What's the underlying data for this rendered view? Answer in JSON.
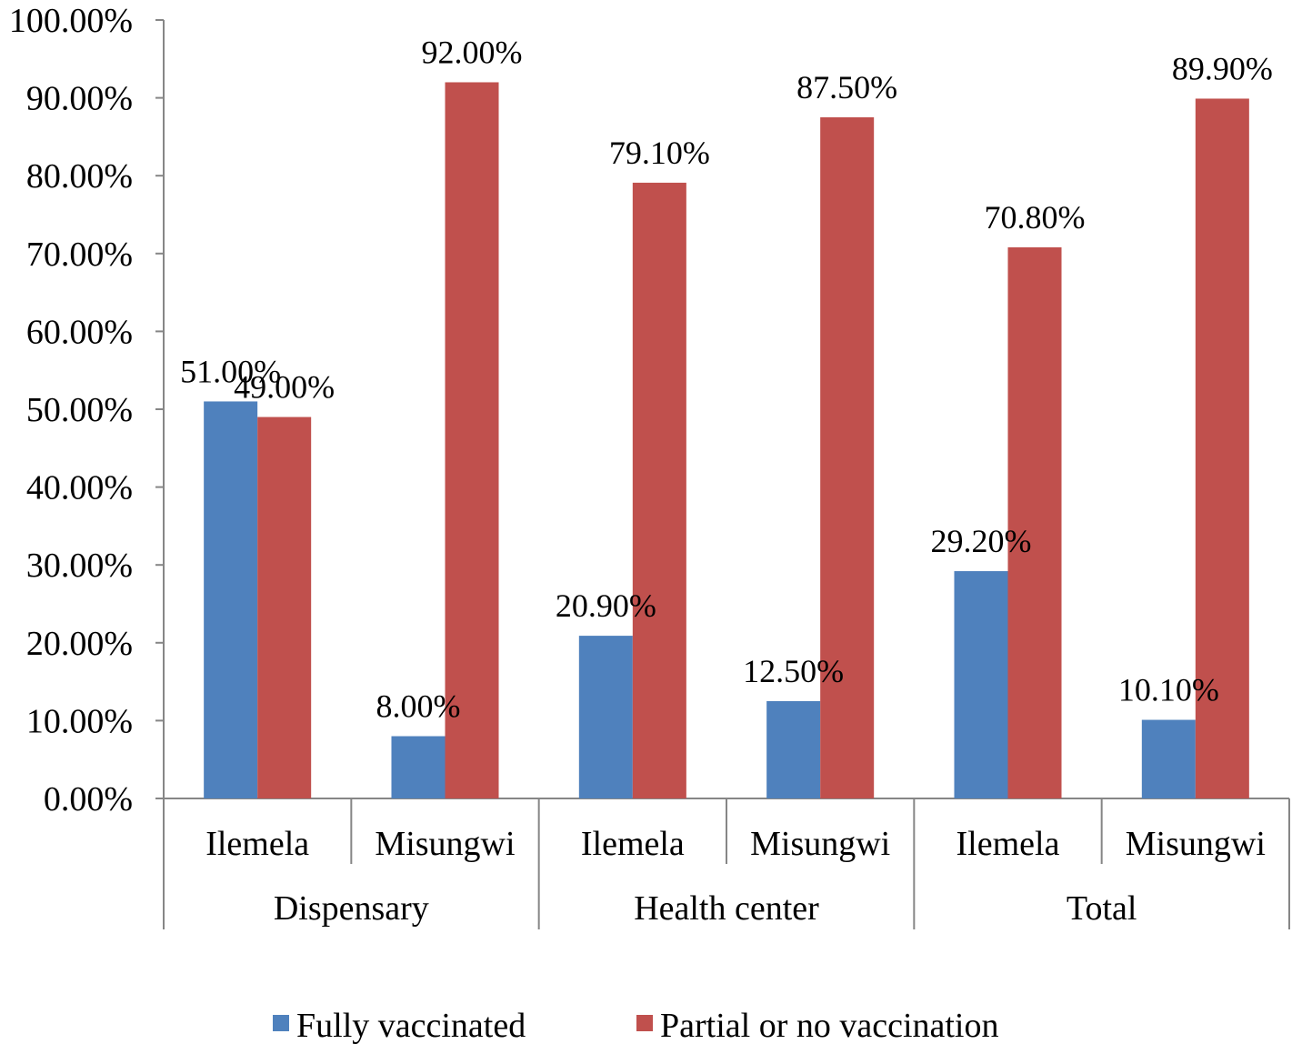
{
  "chart_data": {
    "type": "bar",
    "title": "",
    "xlabel": "",
    "ylabel": "",
    "ylim": [
      0,
      100
    ],
    "ytick_step": 10,
    "ytick_format": "{v}.00%",
    "groups": [
      {
        "label": "Dispensary",
        "categories": [
          "Ilemela",
          "Misungwi"
        ]
      },
      {
        "label": "Health center",
        "categories": [
          "Ilemela",
          "Misungwi"
        ]
      },
      {
        "label": "Total",
        "categories": [
          "Ilemela",
          "Misungwi"
        ]
      }
    ],
    "series": [
      {
        "name": "Fully vaccinated",
        "color": "#4F81BD",
        "values": [
          51.0,
          8.0,
          20.9,
          12.5,
          29.2,
          10.1
        ],
        "labels": [
          "51.00%",
          "8.00%",
          "20.90%",
          "12.50%",
          "29.20%",
          "10.10%"
        ]
      },
      {
        "name": "Partial or no vaccination",
        "color": "#C0504D",
        "values": [
          49.0,
          92.0,
          79.1,
          87.5,
          70.8,
          89.9
        ],
        "labels": [
          "49.00%",
          "92.00%",
          "79.10%",
          "87.50%",
          "70.80%",
          "89.90%"
        ]
      }
    ],
    "legend_position": "bottom",
    "grid": false
  }
}
